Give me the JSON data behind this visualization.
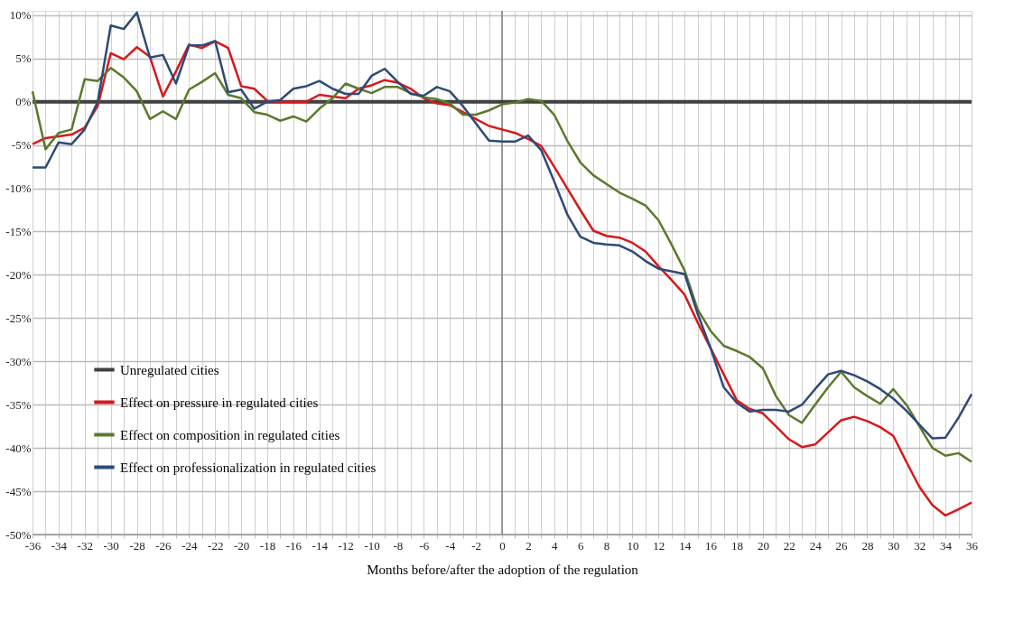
{
  "chart_data": {
    "type": "line",
    "xlabel": "Months before/after the adoption of the regulation",
    "x": [
      -36,
      -35,
      -34,
      -33,
      -32,
      -31,
      -30,
      -29,
      -28,
      -27,
      -26,
      -25,
      -24,
      -23,
      -22,
      -21,
      -20,
      -19,
      -18,
      -17,
      -16,
      -15,
      -14,
      -13,
      -12,
      -11,
      -10,
      -9,
      -8,
      -7,
      -6,
      -5,
      -4,
      -3,
      -2,
      -1,
      0,
      1,
      2,
      3,
      4,
      5,
      6,
      7,
      8,
      9,
      10,
      11,
      12,
      13,
      14,
      15,
      16,
      17,
      18,
      19,
      20,
      21,
      22,
      23,
      24,
      25,
      26,
      27,
      28,
      29,
      30,
      31,
      32,
      33,
      34,
      35,
      36
    ],
    "series": [
      {
        "name": "Unregulated cities",
        "color": "#404040",
        "values": [
          0,
          0,
          0,
          0,
          0,
          0,
          0,
          0,
          0,
          0,
          0,
          0,
          0,
          0,
          0,
          0,
          0,
          0,
          0,
          0,
          0,
          0,
          0,
          0,
          0,
          0,
          0,
          0,
          0,
          0,
          0,
          0,
          0,
          0,
          0,
          0,
          0,
          0,
          0,
          0,
          0,
          0,
          0,
          0,
          0,
          0,
          0,
          0,
          0,
          0,
          0,
          0,
          0,
          0,
          0,
          0,
          0,
          0,
          0,
          0,
          0,
          0,
          0,
          0,
          0,
          0,
          0,
          0,
          0,
          0,
          0,
          0,
          0
        ]
      },
      {
        "name": "Effect on pressure in regulated cities",
        "color": "#d7191c",
        "values": [
          -4.9,
          -4.2,
          -4.0,
          -3.8,
          -3.0,
          -0.5,
          5.6,
          4.9,
          6.3,
          5.2,
          0.6,
          3.5,
          6.6,
          6.2,
          7.0,
          6.2,
          1.8,
          1.5,
          0.1,
          0,
          0,
          0,
          0.8,
          0.6,
          0.4,
          1.5,
          1.9,
          2.5,
          2.2,
          1.5,
          0.4,
          -0.2,
          -0.4,
          -1.2,
          -2.0,
          -2.8,
          -3.2,
          -3.6,
          -4.3,
          -5.1,
          -7.5,
          -10.0,
          -12.5,
          -14.9,
          -15.5,
          -15.7,
          -16.3,
          -17.3,
          -19.0,
          -20.6,
          -22.3,
          -25.5,
          -28.5,
          -31.5,
          -34.5,
          -35.5,
          -36.0,
          -37.5,
          -39.0,
          -39.9,
          -39.6,
          -38.2,
          -36.8,
          -36.4,
          -36.9,
          -37.6,
          -38.6,
          -41.6,
          -44.5,
          -46.6,
          -47.8,
          -47.1,
          -46.3
        ]
      },
      {
        "name": "Effect on composition in regulated cities",
        "color": "#5a7a2e",
        "values": [
          1.2,
          -5.5,
          -3.6,
          -3.2,
          2.6,
          2.4,
          3.9,
          2.8,
          1.2,
          -2.0,
          -1.1,
          -2.0,
          1.4,
          2.3,
          3.3,
          0.8,
          0.4,
          -1.2,
          -1.5,
          -2.2,
          -1.7,
          -2.3,
          -0.8,
          0.4,
          2.1,
          1.5,
          1.0,
          1.7,
          1.7,
          1.0,
          0.5,
          0.3,
          -0.2,
          -1.5,
          -1.5,
          -1.0,
          -0.3,
          -0.1,
          0.3,
          0.1,
          -1.5,
          -4.5,
          -7.0,
          -8.5,
          -9.5,
          -10.5,
          -11.2,
          -12.0,
          -13.7,
          -16.5,
          -19.5,
          -24.0,
          -26.5,
          -28.2,
          -28.8,
          -29.5,
          -30.8,
          -34.0,
          -36.2,
          -37.1,
          -35.0,
          -33.0,
          -31.2,
          -33.0,
          -34.0,
          -34.9,
          -33.2,
          -35.0,
          -37.5,
          -40.0,
          -40.9,
          -40.6,
          -41.6
        ]
      },
      {
        "name": "Effect on professionalization in regulated cities",
        "color": "#2e4a76",
        "values": [
          -7.6,
          -7.6,
          -4.7,
          -4.9,
          -3.2,
          0,
          8.8,
          8.4,
          10.3,
          5.1,
          5.4,
          2.1,
          6.5,
          6.5,
          7.0,
          1.1,
          1.4,
          -0.8,
          0,
          0.2,
          1.5,
          1.8,
          2.4,
          1.5,
          0.9,
          0.9,
          3.0,
          3.8,
          2.3,
          0.9,
          0.7,
          1.7,
          1.2,
          -0.5,
          -2.5,
          -4.5,
          -4.6,
          -4.6,
          -3.9,
          -5.6,
          -9.2,
          -13.0,
          -15.6,
          -16.3,
          -16.5,
          -16.6,
          -17.3,
          -18.4,
          -19.3,
          -19.6,
          -19.9,
          -24.5,
          -28.5,
          -33.0,
          -34.8,
          -35.8,
          -35.6,
          -35.6,
          -35.8,
          -35.0,
          -33.2,
          -31.5,
          -31.1,
          -31.6,
          -32.3,
          -33.2,
          -34.3,
          -35.7,
          -37.3,
          -38.9,
          -38.8,
          -36.5,
          -33.8
        ]
      }
    ],
    "xlim": [
      -36,
      36
    ],
    "xticks": [
      -36,
      {
        "value": -35,
        "label": null
      },
      -34,
      {
        "value": -33,
        "label": null
      },
      -32,
      {
        "value": -31,
        "label": null
      },
      -30,
      {
        "value": -29,
        "label": null
      },
      -28,
      {
        "value": -27,
        "label": null
      },
      -26,
      {
        "value": -25,
        "label": null
      },
      -24,
      {
        "value": -23,
        "label": null
      },
      -22,
      {
        "value": -21,
        "label": null
      },
      -20,
      {
        "value": -19,
        "label": null
      },
      -18,
      {
        "value": -17,
        "label": null
      },
      -16,
      {
        "value": -15,
        "label": null
      },
      -14,
      {
        "value": -13,
        "label": null
      },
      -12,
      {
        "value": -11,
        "label": null
      },
      -10,
      {
        "value": -9,
        "label": null
      },
      -8,
      {
        "value": -7,
        "label": null
      },
      -6,
      {
        "value": -5,
        "label": null
      },
      -4,
      {
        "value": -3,
        "label": null
      },
      -2,
      {
        "value": -1,
        "label": null
      },
      0,
      {
        "value": 1,
        "label": null
      },
      2,
      {
        "value": 3,
        "label": null
      },
      4,
      {
        "value": 5,
        "label": null
      },
      6,
      {
        "value": 7,
        "label": null
      },
      8,
      {
        "value": 9,
        "label": null
      },
      10,
      {
        "value": 11,
        "label": null
      },
      12,
      {
        "value": 13,
        "label": null
      },
      14,
      {
        "value": 15,
        "label": null
      },
      16,
      {
        "value": 17,
        "label": null
      },
      18,
      {
        "value": 19,
        "label": null
      },
      20,
      {
        "value": 21,
        "label": null
      },
      22,
      {
        "value": 23,
        "label": null
      },
      24,
      {
        "value": 25,
        "label": null
      },
      26,
      {
        "value": 27,
        "label": null
      },
      28,
      {
        "value": 29,
        "label": null
      },
      30,
      {
        "value": 31,
        "label": null
      },
      32,
      {
        "value": 33,
        "label": null
      },
      34,
      {
        "value": 35,
        "label": null
      },
      36
    ],
    "ylim": [
      -50,
      10.5
    ],
    "yticks": [
      {
        "value": 10,
        "label": "10%"
      },
      {
        "value": 5,
        "label": "5%"
      },
      {
        "value": 0,
        "label": "0%"
      },
      {
        "value": -5,
        "label": "-5%"
      },
      {
        "value": -10,
        "label": "-10%"
      },
      {
        "value": -15,
        "label": "-15%"
      },
      {
        "value": -20,
        "label": "-20%"
      },
      {
        "value": -25,
        "label": "-25%"
      },
      {
        "value": -30,
        "label": "-30%"
      },
      {
        "value": -35,
        "label": "-35%"
      },
      {
        "value": -40,
        "label": "-40%"
      },
      {
        "value": -45,
        "label": "-45%"
      },
      {
        "value": -50,
        "label": "-50%"
      }
    ],
    "ref_lines": [
      {
        "axis": "x",
        "value": 0,
        "color": "#808080"
      }
    ],
    "grid": true,
    "legend": "bottom left",
    "line_style": "solid",
    "marker": "none"
  }
}
